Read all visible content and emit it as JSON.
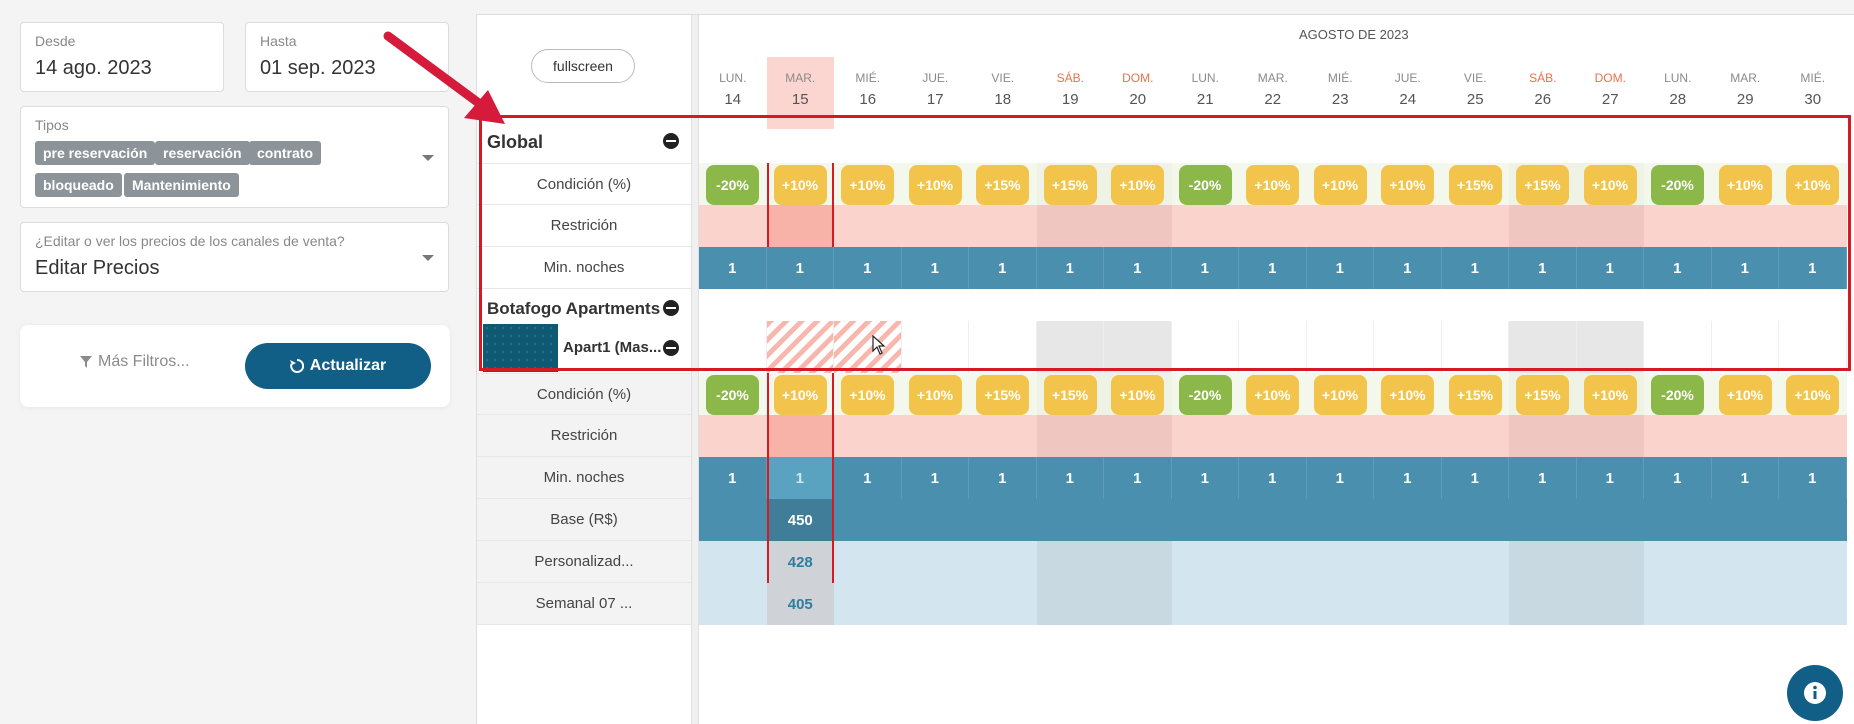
{
  "filters": {
    "desde_label": "Desde",
    "desde_value": "14 ago. 2023",
    "hasta_label": "Hasta",
    "hasta_value": "01 sep. 2023",
    "tipos_label": "Tipos",
    "tipos": [
      "pre reservación",
      "reservación",
      "contrato",
      "bloqueado",
      "Mantenimiento"
    ],
    "channel_question": "¿Editar o ver los precios de los canales de venta?",
    "channel_value": "Editar Precios",
    "more_filters": "Más Filtros...",
    "refresh": "Actualizar"
  },
  "grid": {
    "fullscreen": "fullscreen",
    "month_title": "AGOSTO DE 2023",
    "days": [
      {
        "name": "LUN.",
        "num": "14"
      },
      {
        "name": "MAR.",
        "num": "15"
      },
      {
        "name": "MIÉ.",
        "num": "16"
      },
      {
        "name": "JUE.",
        "num": "17"
      },
      {
        "name": "VIE.",
        "num": "18"
      },
      {
        "name": "SÁB.",
        "num": "19"
      },
      {
        "name": "DOM.",
        "num": "20"
      },
      {
        "name": "LUN.",
        "num": "21"
      },
      {
        "name": "MAR.",
        "num": "22"
      },
      {
        "name": "MIÉ.",
        "num": "23"
      },
      {
        "name": "JUE.",
        "num": "24"
      },
      {
        "name": "VIE.",
        "num": "25"
      },
      {
        "name": "SÁB.",
        "num": "26"
      },
      {
        "name": "DOM.",
        "num": "27"
      },
      {
        "name": "LUN.",
        "num": "28"
      },
      {
        "name": "MAR.",
        "num": "29"
      },
      {
        "name": "MIÉ.",
        "num": "30"
      }
    ],
    "global_label": "Global",
    "botafogo_label": "Botafogo Apartments",
    "apart_label": "Apart1 (Mas...",
    "row_labels": {
      "condicion": "Condición (%)",
      "restricion": "Restrición",
      "min_noches": "Min. noches",
      "base": "Base (R$)",
      "personalizado": "Personalizad...",
      "semanal": "Semanal 07 ..."
    },
    "conditions": [
      "-20%",
      "+10%",
      "+10%",
      "+10%",
      "+15%",
      "+15%",
      "+10%",
      "-20%",
      "+10%",
      "+10%",
      "+10%",
      "+15%",
      "+15%",
      "+10%",
      "-20%",
      "+10%",
      "+10%"
    ],
    "min_nights": [
      "1",
      "1",
      "1",
      "1",
      "1",
      "1",
      "1",
      "1",
      "1",
      "1",
      "1",
      "1",
      "1",
      "1",
      "1",
      "1",
      "1"
    ],
    "base_value": "450",
    "personalizado_value": "428",
    "semanal_value": "405"
  }
}
